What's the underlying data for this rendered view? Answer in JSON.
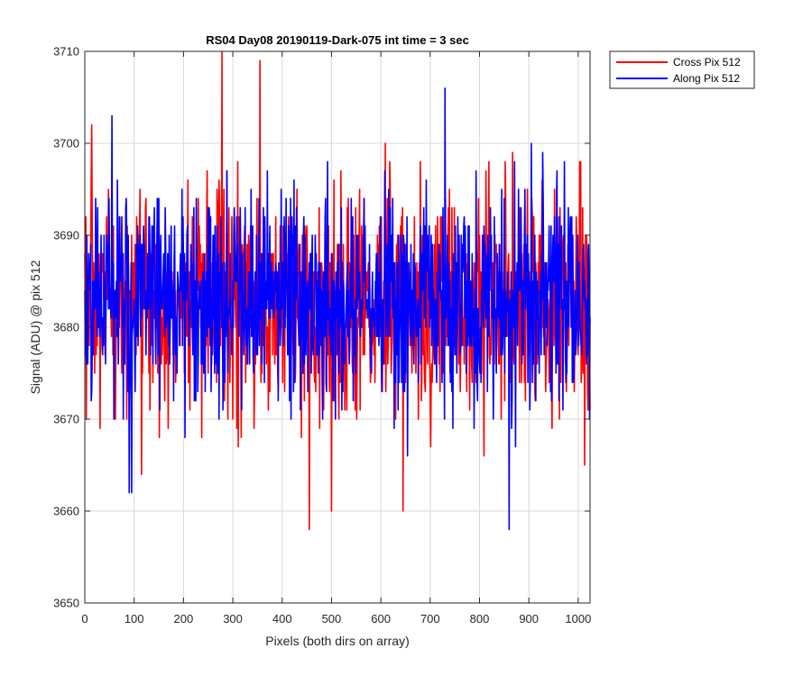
{
  "chart_data": {
    "type": "line",
    "title": "RS04 Day08 20190119-Dark-075 int time = 3 sec",
    "xlabel": "Pixels (both dirs on array)",
    "ylabel": "Signal (ADU) @ pix 512",
    "xlim": [
      0,
      1024
    ],
    "ylim": [
      3650,
      3710
    ],
    "xticks": [
      0,
      100,
      200,
      300,
      400,
      500,
      600,
      700,
      800,
      900,
      1000
    ],
    "yticks": [
      3650,
      3660,
      3670,
      3680,
      3690,
      3700,
      3710
    ],
    "grid": true,
    "legend_position": "outside-top-right",
    "x_step": 1,
    "series": [
      {
        "name": "Cross Pix 512",
        "color": "#ff0000",
        "stats": {
          "mean": 3682.5,
          "std": 6.4,
          "min": 3658,
          "max": 3710
        },
        "notable_points": [
          [
            0,
            3688
          ],
          [
            278,
            3710
          ],
          [
            355,
            3709
          ],
          [
            455,
            3658
          ],
          [
            500,
            3660
          ],
          [
            645,
            3660
          ],
          [
            680,
            3698
          ]
        ]
      },
      {
        "name": "Along Pix 512",
        "color": "#0000ff",
        "stats": {
          "mean": 3683.0,
          "std": 6.0,
          "min": 3658,
          "max": 3706
        },
        "notable_points": [
          [
            0,
            3684
          ],
          [
            55,
            3703
          ],
          [
            90,
            3662
          ],
          [
            95,
            3662
          ],
          [
            730,
            3706
          ],
          [
            860,
            3658
          ],
          [
            905,
            3700
          ]
        ]
      }
    ]
  }
}
